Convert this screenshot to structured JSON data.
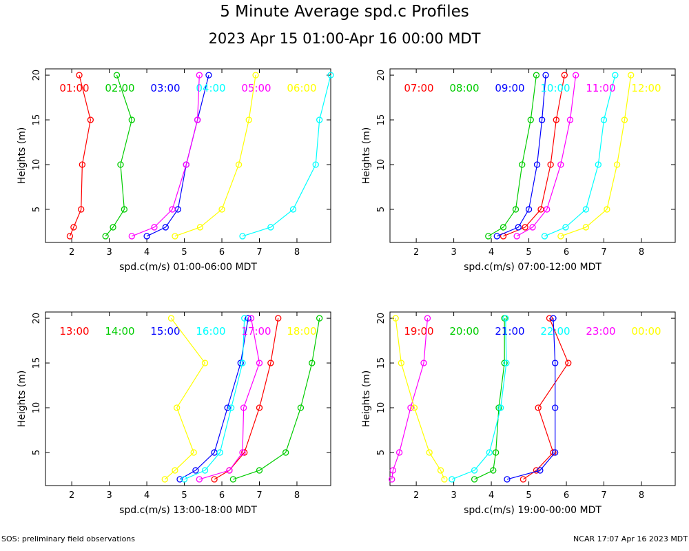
{
  "title": "5 Minute Average spd.c Profiles",
  "subtitle": "2023 Apr 15 01:00-Apr 16 00:00 MDT",
  "footer_left": "SOS: preliminary field observations",
  "footer_right": "NCAR 17:07 Apr 16 2023 MDT",
  "colors": [
    "#ff0000",
    "#00cc00",
    "#0000ff",
    "#00ffff",
    "#ff00ff",
    "#ffff00"
  ],
  "chart_data": [
    {
      "type": "line",
      "xlabel": "spd.c(m/s) 01:00-06:00 MDT",
      "ylabel": "Heights (m)",
      "xlim": [
        1.3,
        8.9
      ],
      "ylim": [
        1.3,
        20.7
      ],
      "xticks": [
        2,
        3,
        4,
        5,
        6,
        7,
        8
      ],
      "yticks": [
        5,
        10,
        15,
        20
      ],
      "heights": [
        2,
        3,
        5,
        10,
        15,
        20
      ],
      "series": [
        {
          "name": "01:00",
          "values": [
            1.95,
            2.05,
            2.25,
            2.28,
            2.5,
            2.2
          ]
        },
        {
          "name": "02:00",
          "values": [
            2.9,
            3.1,
            3.4,
            3.3,
            3.6,
            3.2
          ]
        },
        {
          "name": "03:00",
          "values": [
            4.0,
            4.5,
            4.83,
            5.05,
            5.35,
            5.65
          ]
        },
        {
          "name": "04:00",
          "values": [
            6.55,
            7.3,
            7.9,
            8.5,
            8.6,
            8.9
          ]
        },
        {
          "name": "05:00",
          "values": [
            3.6,
            4.2,
            4.68,
            5.05,
            5.35,
            5.4
          ]
        },
        {
          "name": "06:00",
          "values": [
            4.75,
            5.42,
            6.0,
            6.45,
            6.72,
            6.9
          ]
        }
      ]
    },
    {
      "type": "line",
      "xlabel": "spd.c(m/s) 07:00-12:00 MDT",
      "ylabel": "Heights (m)",
      "xlim": [
        1.3,
        8.9
      ],
      "ylim": [
        1.3,
        20.7
      ],
      "xticks": [
        2,
        3,
        4,
        5,
        6,
        7,
        8
      ],
      "yticks": [
        5,
        10,
        15,
        20
      ],
      "heights": [
        2,
        3,
        5,
        10,
        15,
        20
      ],
      "series": [
        {
          "name": "07:00",
          "values": [
            4.32,
            4.9,
            5.32,
            5.58,
            5.73,
            5.95
          ]
        },
        {
          "name": "08:00",
          "values": [
            3.92,
            4.32,
            4.65,
            4.82,
            5.05,
            5.2
          ]
        },
        {
          "name": "09:00",
          "values": [
            4.15,
            4.72,
            5.0,
            5.22,
            5.35,
            5.45
          ]
        },
        {
          "name": "10:00",
          "values": [
            5.42,
            5.98,
            6.52,
            6.85,
            7.0,
            7.3
          ]
        },
        {
          "name": "11:00",
          "values": [
            4.68,
            5.1,
            5.48,
            5.85,
            6.1,
            6.25
          ]
        },
        {
          "name": "12:00",
          "values": [
            5.85,
            6.52,
            7.08,
            7.35,
            7.55,
            7.72
          ]
        }
      ]
    },
    {
      "type": "line",
      "xlabel": "spd.c(m/s) 13:00-18:00 MDT",
      "ylabel": "Heights (m)",
      "xlim": [
        1.3,
        8.9
      ],
      "ylim": [
        1.3,
        20.7
      ],
      "xticks": [
        2,
        3,
        4,
        5,
        6,
        7,
        8
      ],
      "yticks": [
        5,
        10,
        15,
        20
      ],
      "heights": [
        2,
        3,
        5,
        10,
        15,
        20
      ],
      "series": [
        {
          "name": "13:00",
          "values": [
            5.8,
            6.2,
            6.6,
            7.0,
            7.3,
            7.5
          ]
        },
        {
          "name": "14:00",
          "values": [
            6.3,
            7.0,
            7.7,
            8.1,
            8.4,
            8.6
          ]
        },
        {
          "name": "15:00",
          "values": [
            4.88,
            5.3,
            5.8,
            6.15,
            6.5,
            6.7
          ]
        },
        {
          "name": "16:00",
          "values": [
            5.0,
            5.55,
            5.95,
            6.25,
            6.55,
            6.6
          ]
        },
        {
          "name": "17:00",
          "values": [
            5.4,
            6.2,
            6.55,
            6.58,
            7.0,
            6.78
          ]
        },
        {
          "name": "18:00",
          "values": [
            4.48,
            4.75,
            5.25,
            4.8,
            5.55,
            4.65
          ]
        }
      ]
    },
    {
      "type": "line",
      "xlabel": "spd.c(m/s) 19:00-00:00 MDT",
      "ylabel": "Heights (m)",
      "xlim": [
        1.3,
        8.9
      ],
      "ylim": [
        1.3,
        20.7
      ],
      "xticks": [
        2,
        3,
        4,
        5,
        6,
        7,
        8
      ],
      "yticks": [
        5,
        10,
        15,
        20
      ],
      "heights": [
        2,
        3,
        5,
        10,
        15,
        20
      ],
      "series": [
        {
          "name": "19:00",
          "values": [
            4.85,
            5.2,
            5.65,
            5.25,
            6.05,
            5.55
          ]
        },
        {
          "name": "20:00",
          "values": [
            3.55,
            4.05,
            4.12,
            4.2,
            4.35,
            4.35
          ]
        },
        {
          "name": "21:00",
          "values": [
            4.42,
            5.3,
            5.7,
            5.7,
            5.7,
            5.65
          ]
        },
        {
          "name": "22:00",
          "values": [
            2.95,
            3.55,
            3.95,
            4.25,
            4.4,
            4.38
          ]
        },
        {
          "name": "23:00",
          "values": [
            1.35,
            1.38,
            1.55,
            1.85,
            2.2,
            2.3
          ]
        },
        {
          "name": "00:00",
          "values": [
            2.75,
            2.65,
            2.35,
            1.95,
            1.6,
            1.45
          ]
        }
      ]
    }
  ]
}
